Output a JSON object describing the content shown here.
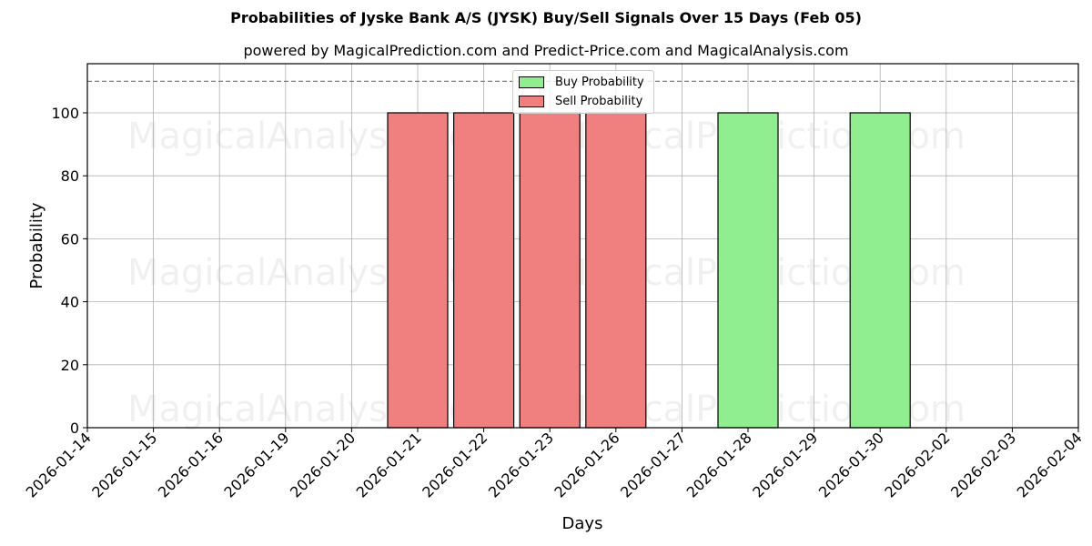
{
  "title": "Probabilities of Jyske Bank A/S (JYSK) Buy/Sell Signals Over 15 Days (Feb 05)",
  "subtitle": "powered by MagicalPrediction.com and Predict-Price.com and MagicalAnalysis.com",
  "watermarks": [
    "MagicalAnalysis.com",
    "MagicalPrediction.com"
  ],
  "legend": [
    {
      "label": "Buy Probability",
      "color": "#90ee90"
    },
    {
      "label": "Sell Probability",
      "color": "#f08080"
    }
  ],
  "chart_data": {
    "type": "bar",
    "title": "Probabilities of Jyske Bank A/S (JYSK) Buy/Sell Signals Over 15 Days (Feb 05)",
    "subtitle": "powered by MagicalPrediction.com and Predict-Price.com and MagicalAnalysis.com",
    "xlabel": "Days",
    "ylabel": "Probability",
    "ylim": [
      0,
      115.6
    ],
    "yticks": [
      0,
      20,
      40,
      60,
      80,
      100
    ],
    "grid": true,
    "legend_position": "upper center",
    "reference_line": {
      "y": 110,
      "style": "dashed",
      "color": "#808080"
    },
    "categories": [
      "2026-01-14",
      "2026-01-15",
      "2026-01-16",
      "2026-01-19",
      "2026-01-20",
      "2026-01-21",
      "2026-01-22",
      "2026-01-23",
      "2026-01-26",
      "2026-01-27",
      "2026-01-28",
      "2026-01-29",
      "2026-01-30",
      "2026-02-02",
      "2026-02-03",
      "2026-02-04"
    ],
    "series": [
      {
        "name": "Buy Probability",
        "color": "#90ee90",
        "values": [
          0,
          0,
          0,
          0,
          0,
          0,
          0,
          0,
          0,
          0,
          100,
          0,
          100,
          0,
          0,
          0
        ]
      },
      {
        "name": "Sell Probability",
        "color": "#f08080",
        "values": [
          0,
          0,
          0,
          0,
          0,
          100,
          100,
          100,
          100,
          0,
          0,
          0,
          0,
          0,
          0,
          0
        ]
      }
    ]
  }
}
